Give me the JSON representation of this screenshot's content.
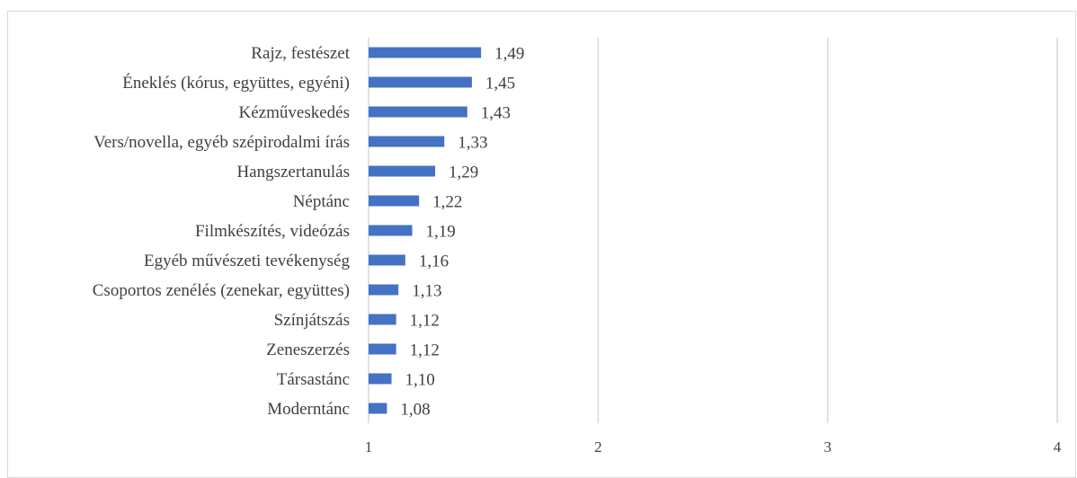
{
  "chart_data": {
    "type": "bar",
    "orientation": "horizontal",
    "title": "",
    "xlabel": "",
    "ylabel": "",
    "categories": [
      "Rajz, festészet",
      "Éneklés (kórus, együttes, egyéni)",
      "Kézműveskedés",
      "Vers/novella, egyéb szépirodalmi írás",
      "Hangszertanulás",
      "Néptánc",
      "Filmkészítés, videózás",
      "Egyéb művészeti tevékenység",
      "Csoportos zenélés (zenekar, együttes)",
      "Színjátszás",
      "Zeneszerzés",
      "Társastánc",
      "Moderntánc"
    ],
    "values": [
      1.49,
      1.45,
      1.43,
      1.33,
      1.29,
      1.22,
      1.19,
      1.16,
      1.13,
      1.12,
      1.12,
      1.1,
      1.08
    ],
    "value_labels": [
      "1,49",
      "1,45",
      "1,43",
      "1,33",
      "1,29",
      "1,22",
      "1,19",
      "1,16",
      "1,13",
      "1,12",
      "1,12",
      "1,10",
      "1,08"
    ],
    "xlim": [
      1,
      4
    ],
    "xticks": [
      1,
      2,
      3,
      4
    ],
    "xtick_labels": [
      "1",
      "2",
      "3",
      "4"
    ],
    "grid": true,
    "legend": "none",
    "bar_color": "#4472c4",
    "grid_color": "#d9d9d9"
  }
}
